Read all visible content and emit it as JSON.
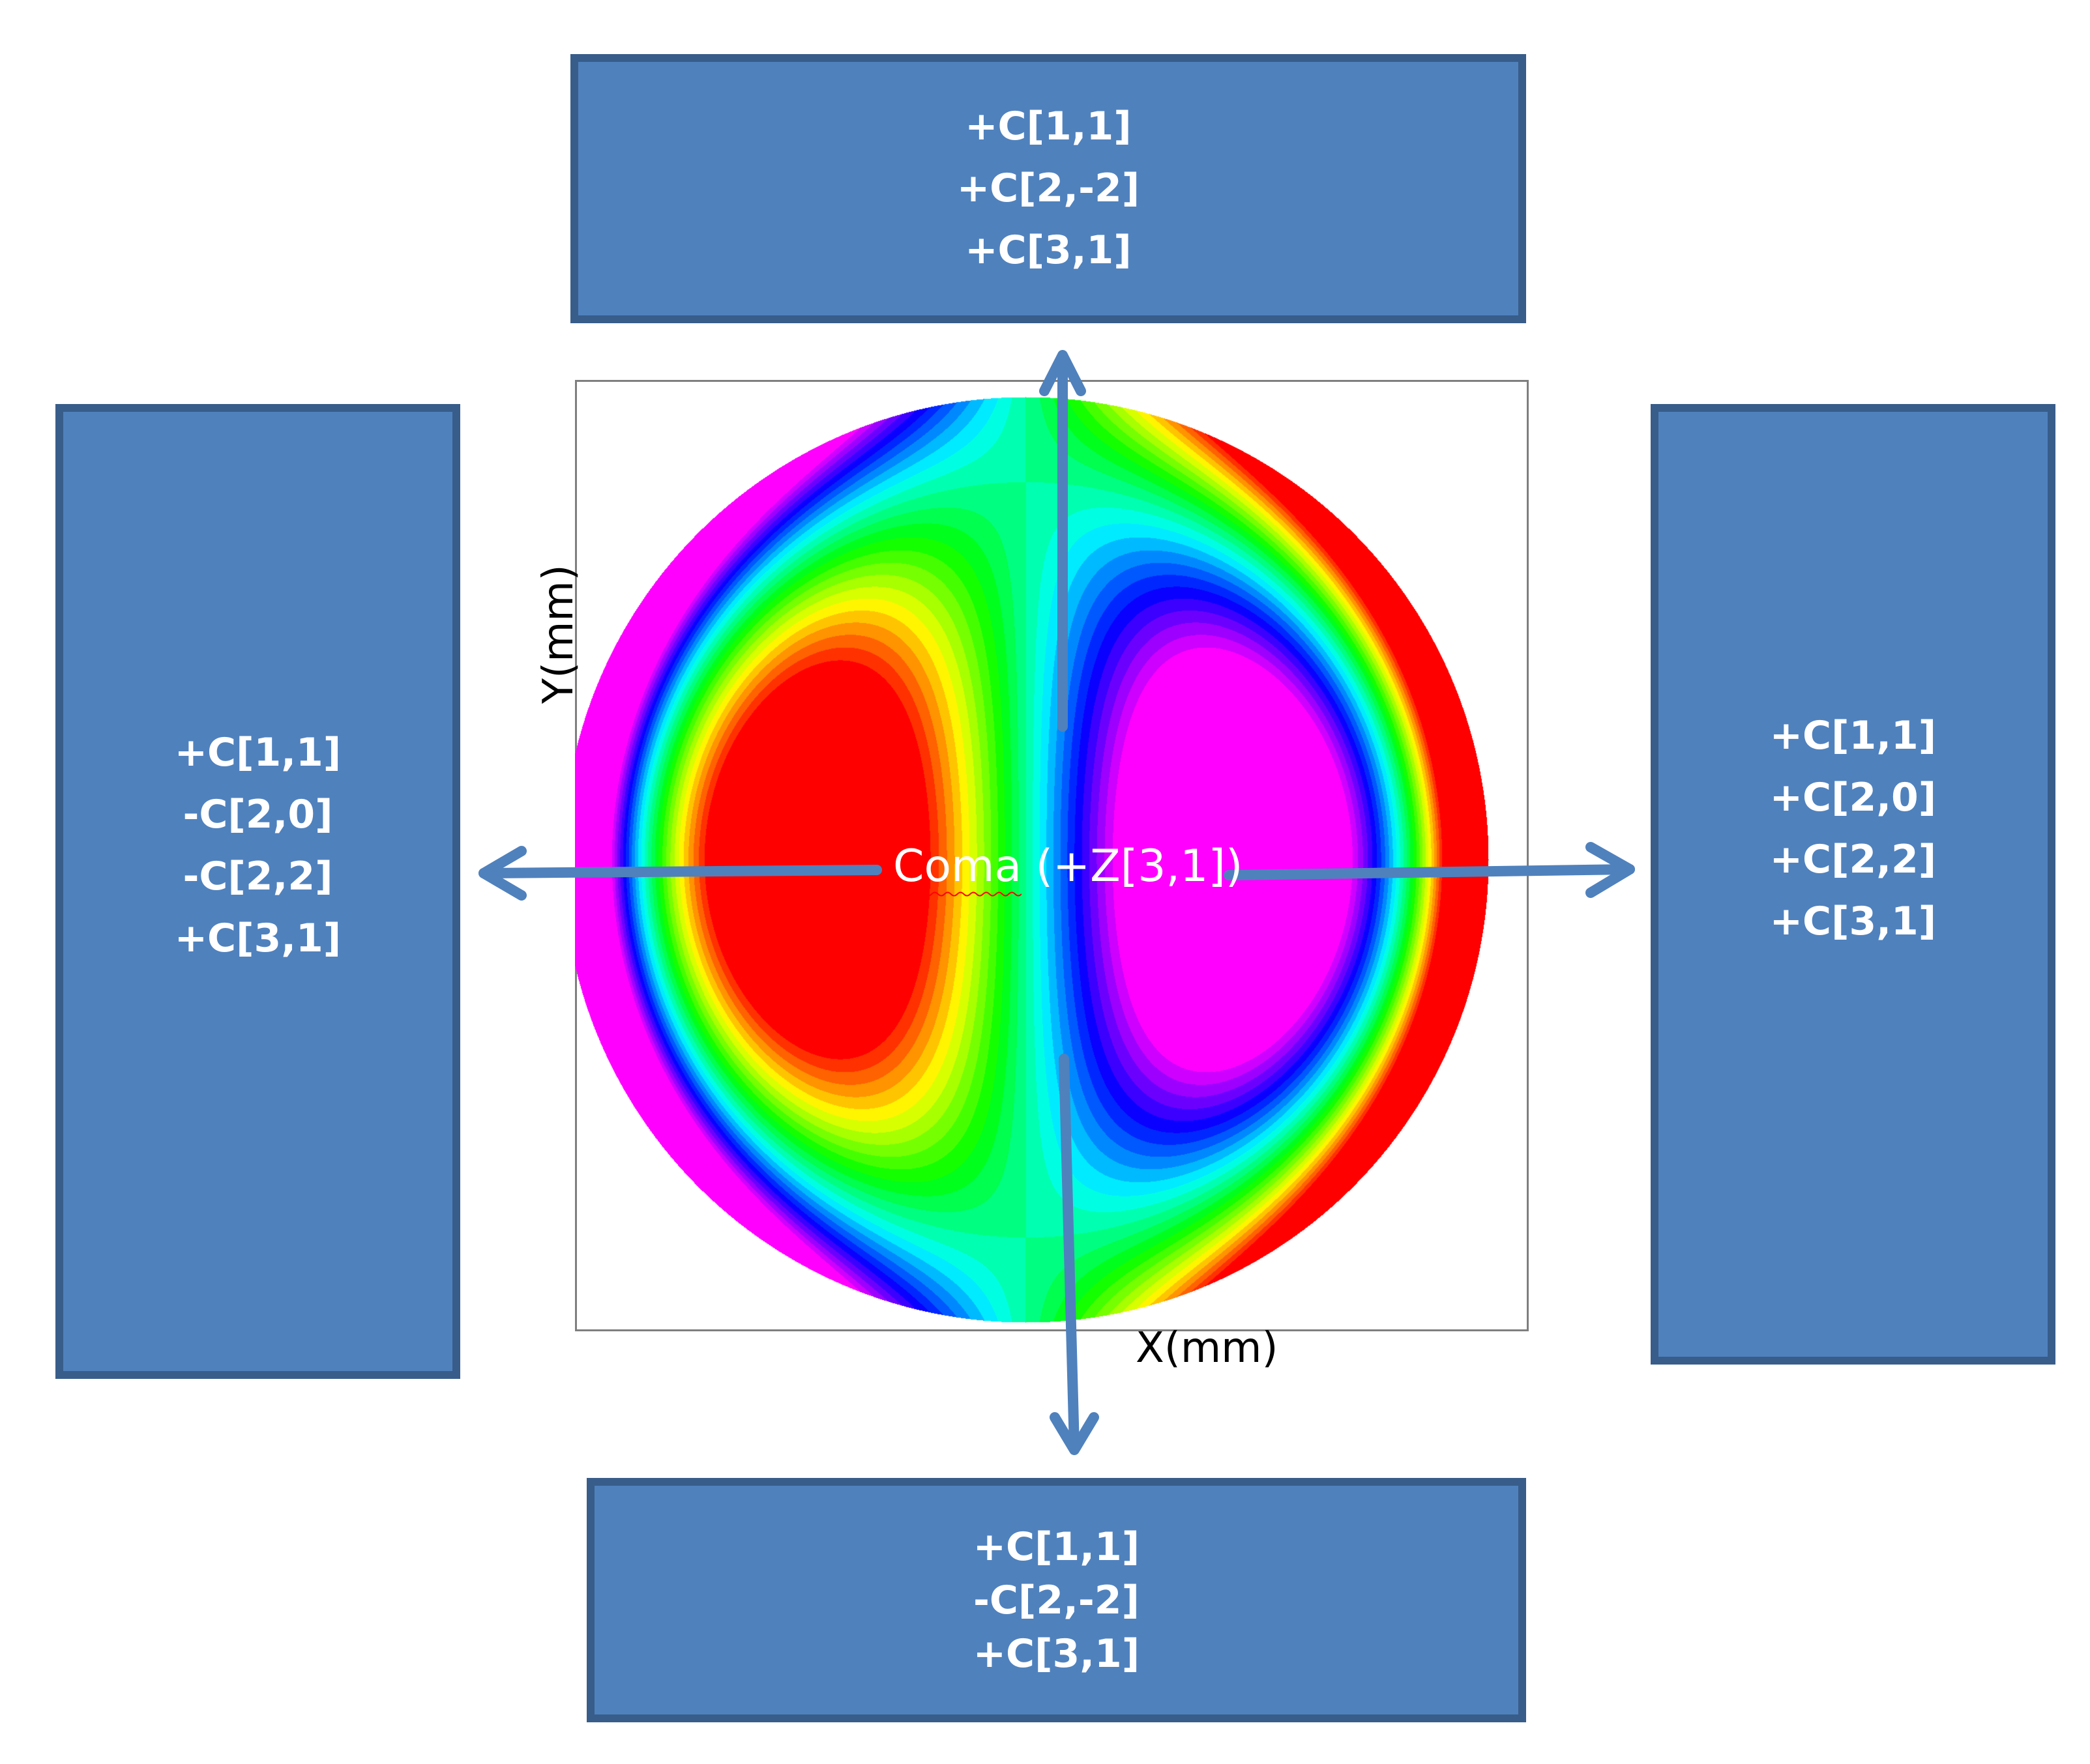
{
  "boxes": {
    "top": {
      "lines": [
        "+C[1,1]",
        "+C[2,-2]",
        "+C[3,1]"
      ]
    },
    "left": {
      "lines": [
        "+C[1,1]",
        "-C[2,0]",
        "-C[2,2]",
        "+C[3,1]"
      ]
    },
    "right": {
      "lines": [
        "+C[1,1]",
        "+C[2,0]",
        "+C[2,2]",
        "+C[3,1]"
      ]
    },
    "bottom": {
      "lines": [
        "+C[1,1]",
        "-C[2,-2]",
        "+C[3,1]"
      ]
    }
  },
  "plot": {
    "x_label": "X(mm)",
    "y_label": "Y(mm)",
    "center_label_word": "Coma",
    "center_label_rest": " (+Z[3,1])",
    "colormap": [
      "#ff00ff",
      "#0000ff",
      "#00ffff",
      "#00ff00",
      "#ffff00",
      "#ff0000"
    ]
  },
  "colors": {
    "box_fill": "#4F81BD",
    "box_border": "#385D8A",
    "arrow": "#4F81BD"
  }
}
